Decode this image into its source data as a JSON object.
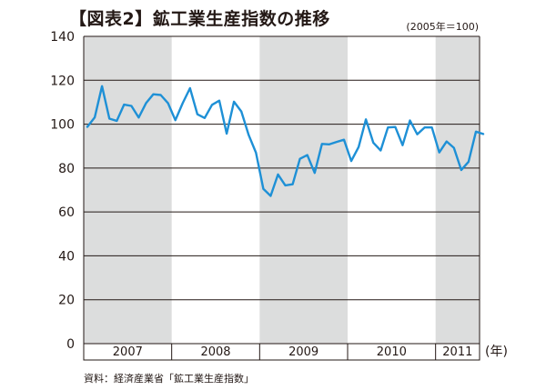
{
  "chart_data": {
    "type": "line",
    "title": "【図表2】鉱工業生産指数の推移",
    "note": "(2005年＝100)",
    "source": "資料：経済産業省「鉱工業生産指数」",
    "xlabel": "(年)",
    "ylabel": "",
    "ylim": [
      0,
      140
    ],
    "yticks": [
      0,
      20,
      40,
      60,
      80,
      100,
      120,
      140
    ],
    "grid": true,
    "shaded_years": [
      "2007",
      "2009",
      "2011"
    ],
    "years": [
      "2007",
      "2008",
      "2009",
      "2010",
      "2011"
    ],
    "x_start": "2007-01",
    "x_end": "2011-12",
    "series": [
      {
        "color": "#1e90d6",
        "values": [
          98.8,
          103.1,
          117.3,
          102.5,
          101.5,
          108.9,
          108.3,
          103.0,
          109.6,
          113.6,
          113.3,
          109.6,
          101.8,
          109.6,
          116.4,
          104.5,
          102.8,
          108.8,
          110.7,
          95.7,
          110.2,
          105.8,
          95.0,
          87.0,
          70.5,
          67.3,
          77.1,
          72.1,
          72.6,
          84.2,
          85.9,
          77.8,
          91.0,
          90.8,
          91.9,
          92.9,
          83.2,
          89.6,
          102.2,
          91.6,
          88.0,
          98.5,
          98.7,
          90.4,
          101.7,
          95.4,
          98.5,
          98.5,
          87.1,
          92.1,
          89.2,
          79.1,
          82.9,
          96.6,
          95.5
        ]
      }
    ]
  }
}
